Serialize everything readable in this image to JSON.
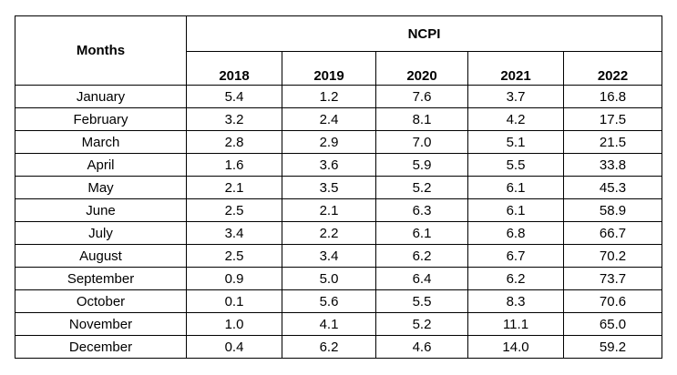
{
  "table": {
    "row_header_title": "Months",
    "group_title": "NCPI",
    "years": [
      "2018",
      "2019",
      "2020",
      "2021",
      "2022"
    ],
    "rows": [
      {
        "month": "January",
        "values": [
          "5.4",
          "1.2",
          "7.6",
          "3.7",
          "16.8"
        ]
      },
      {
        "month": "February",
        "values": [
          "3.2",
          "2.4",
          "8.1",
          "4.2",
          "17.5"
        ]
      },
      {
        "month": "March",
        "values": [
          "2.8",
          "2.9",
          "7.0",
          "5.1",
          "21.5"
        ]
      },
      {
        "month": "April",
        "values": [
          "1.6",
          "3.6",
          "5.9",
          "5.5",
          "33.8"
        ]
      },
      {
        "month": "May",
        "values": [
          "2.1",
          "3.5",
          "5.2",
          "6.1",
          "45.3"
        ]
      },
      {
        "month": "June",
        "values": [
          "2.5",
          "2.1",
          "6.3",
          "6.1",
          "58.9"
        ]
      },
      {
        "month": "July",
        "values": [
          "3.4",
          "2.2",
          "6.1",
          "6.8",
          "66.7"
        ]
      },
      {
        "month": "August",
        "values": [
          "2.5",
          "3.4",
          "6.2",
          "6.7",
          "70.2"
        ]
      },
      {
        "month": "September",
        "values": [
          "0.9",
          "5.0",
          "6.4",
          "6.2",
          "73.7"
        ]
      },
      {
        "month": "October",
        "values": [
          "0.1",
          "5.6",
          "5.5",
          "8.3",
          "70.6"
        ]
      },
      {
        "month": "November",
        "values": [
          "1.0",
          "4.1",
          "5.2",
          "11.1",
          "65.0"
        ]
      },
      {
        "month": "December",
        "values": [
          "0.4",
          "6.2",
          "4.6",
          "14.0",
          "59.2"
        ]
      }
    ]
  }
}
